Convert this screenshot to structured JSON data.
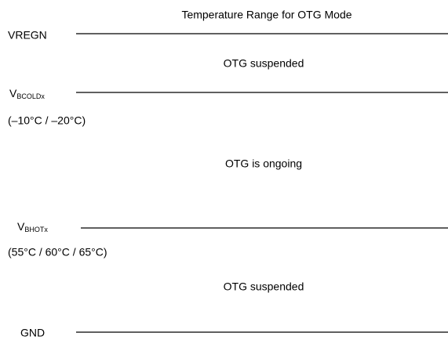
{
  "title": "Temperature Range for OTG Mode",
  "levels": [
    {
      "label": "VREGN"
    },
    {
      "label": "V",
      "subscript": "BCOLDx",
      "range": "(–10°C / –20°C)"
    },
    {
      "label": "V",
      "subscript": "BHOTx",
      "range": "(55°C / 60°C / 65°C)"
    },
    {
      "label": "GND"
    }
  ],
  "regions": [
    "OTG suspended",
    "OTG is ongoing",
    "OTG suspended"
  ]
}
